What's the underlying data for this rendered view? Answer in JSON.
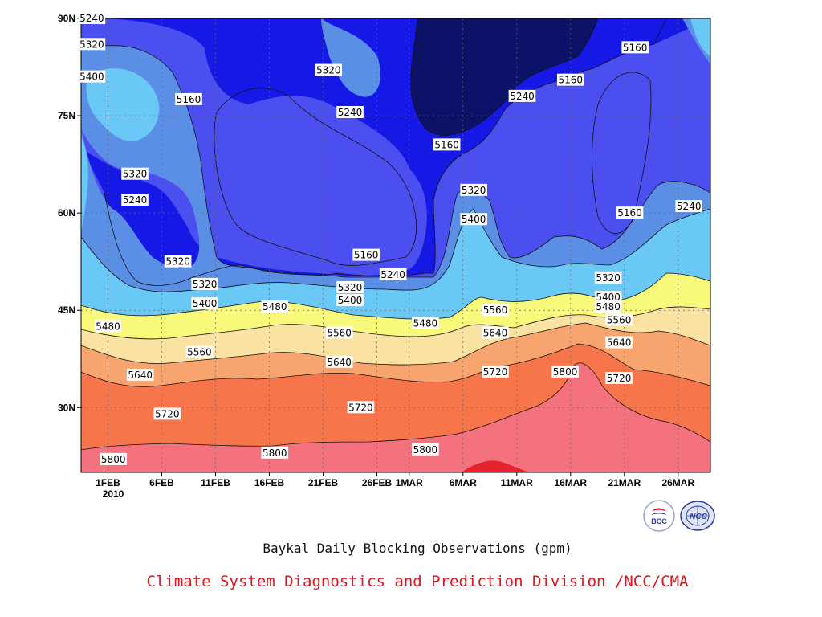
{
  "chart_data": {
    "type": "contour",
    "title": "Baykal Daily Blocking Observations (gpm)",
    "footer": "Climate System Diagnostics and Prediction Division /NCC/CMA",
    "y_ticks": [
      "90N",
      "75N",
      "60N",
      "45N",
      "30N"
    ],
    "y_tick_values": [
      90,
      75,
      60,
      45,
      30
    ],
    "ylim": [
      20,
      90
    ],
    "x_ticks": [
      "1FEB",
      "6FEB",
      "11FEB",
      "16FEB",
      "21FEB",
      "26FEB",
      "1MAR",
      "6MAR",
      "11MAR",
      "16MAR",
      "21MAR",
      "26MAR"
    ],
    "x_tick_days": [
      0,
      5,
      10,
      15,
      20,
      25,
      28,
      33,
      38,
      43,
      48,
      53
    ],
    "x_year": "2010",
    "xlim_days": [
      -2.5,
      56
    ],
    "grid": true,
    "levels": [
      5160,
      5240,
      5320,
      5400,
      5480,
      5560,
      5640,
      5720,
      5800,
      5880
    ],
    "band_colors": [
      "#0c1268",
      "#1618e6",
      "#4c4ff0",
      "#5b8fe6",
      "#6ac8f6",
      "#f8f87a",
      "#fae3a2",
      "#f8a46e",
      "#f7754a",
      "#f4727d",
      "#e5232f"
    ],
    "contour_labels": [
      {
        "value": "5240",
        "day": -1.5,
        "lat": 90
      },
      {
        "value": "5320",
        "day": -1.5,
        "lat": 86
      },
      {
        "value": "5400",
        "day": -1.5,
        "lat": 81
      },
      {
        "value": "5160",
        "day": 7.5,
        "lat": 77.5
      },
      {
        "value": "5320",
        "day": 20.5,
        "lat": 82
      },
      {
        "value": "5240",
        "day": 22.5,
        "lat": 75.5
      },
      {
        "value": "5160",
        "day": 31.5,
        "lat": 70.5
      },
      {
        "value": "5240",
        "day": 38.5,
        "lat": 78
      },
      {
        "value": "5160",
        "day": 43,
        "lat": 80.5
      },
      {
        "value": "5160",
        "day": 49,
        "lat": 85.5
      },
      {
        "value": "5320",
        "day": 2.5,
        "lat": 66
      },
      {
        "value": "5240",
        "day": 2.5,
        "lat": 62
      },
      {
        "value": "5320",
        "day": 34,
        "lat": 63.5
      },
      {
        "value": "5400",
        "day": 34,
        "lat": 59
      },
      {
        "value": "5160",
        "day": 48.5,
        "lat": 60
      },
      {
        "value": "5240",
        "day": 54,
        "lat": 61
      },
      {
        "value": "5160",
        "day": 24,
        "lat": 53.5
      },
      {
        "value": "5240",
        "day": 26.5,
        "lat": 50.5
      },
      {
        "value": "5320",
        "day": 6.5,
        "lat": 52.5
      },
      {
        "value": "5320",
        "day": 9,
        "lat": 49
      },
      {
        "value": "5320",
        "day": 22.5,
        "lat": 48.5
      },
      {
        "value": "5320",
        "day": 46.5,
        "lat": 50
      },
      {
        "value": "5400",
        "day": 9,
        "lat": 46
      },
      {
        "value": "5400",
        "day": 22.5,
        "lat": 46.5
      },
      {
        "value": "5400",
        "day": 46.5,
        "lat": 47
      },
      {
        "value": "5480",
        "day": 15.5,
        "lat": 45.5
      },
      {
        "value": "5480",
        "day": 46.5,
        "lat": 45.5
      },
      {
        "value": "5480",
        "day": 0,
        "lat": 42.5
      },
      {
        "value": "5480",
        "day": 29.5,
        "lat": 43
      },
      {
        "value": "5560",
        "day": 36,
        "lat": 45
      },
      {
        "value": "5560",
        "day": 47.5,
        "lat": 43.5
      },
      {
        "value": "5560",
        "day": 8.5,
        "lat": 38.5
      },
      {
        "value": "5560",
        "day": 21.5,
        "lat": 41.5
      },
      {
        "value": "5640",
        "day": 36,
        "lat": 41.5
      },
      {
        "value": "5640",
        "day": 47.5,
        "lat": 40
      },
      {
        "value": "5640",
        "day": 3,
        "lat": 35
      },
      {
        "value": "5640",
        "day": 21.5,
        "lat": 37
      },
      {
        "value": "5720",
        "day": 36,
        "lat": 35.5
      },
      {
        "value": "5800",
        "day": 42.5,
        "lat": 35.5
      },
      {
        "value": "5720",
        "day": 47.5,
        "lat": 34.5
      },
      {
        "value": "5720",
        "day": 5.5,
        "lat": 29
      },
      {
        "value": "5720",
        "day": 23.5,
        "lat": 30
      },
      {
        "value": "5800",
        "day": 0.5,
        "lat": 22
      },
      {
        "value": "5800",
        "day": 15.5,
        "lat": 23
      },
      {
        "value": "5800",
        "day": 29.5,
        "lat": 23.5
      }
    ]
  },
  "logos": [
    {
      "name": "BCC",
      "text": "BCC",
      "color": "#2b3a9a"
    },
    {
      "name": "NCC",
      "text": "NCC",
      "color": "#2b3a9a"
    }
  ]
}
